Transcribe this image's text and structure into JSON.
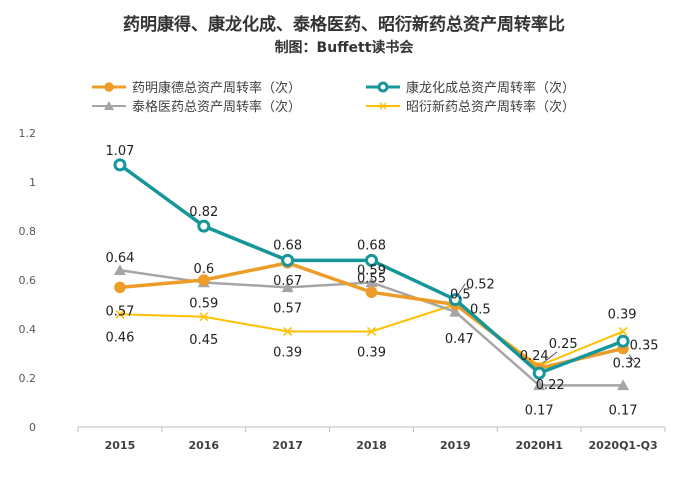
{
  "chart_data": {
    "type": "line",
    "title": "药明康得、康龙化成、泰格医药、昭衍新药总资产周转率比",
    "subtitle": "制图：Buffett读书会",
    "categories": [
      "2015",
      "2016",
      "2017",
      "2018",
      "2019",
      "2020H1",
      "2020Q1-Q3"
    ],
    "ylim": [
      0,
      1.2
    ],
    "yticks": [
      "0",
      "0.2",
      "0.4",
      "0.6",
      "0.8",
      "1",
      "1.2"
    ],
    "grid": false,
    "legend_position": "top",
    "series": [
      {
        "name": "药明康德总资产周转率（次）",
        "color": "#ED9C28",
        "marker": "circle-filled",
        "values": [
          0.57,
          0.6,
          0.67,
          0.55,
          0.5,
          0.24,
          0.32
        ],
        "labels": [
          "0.57",
          "0.6",
          "0.67",
          "0.55",
          "0.5",
          "0.24",
          "0.32"
        ]
      },
      {
        "name": "康龙化成总资产周转率（次）",
        "color": "#15969A",
        "marker": "circle-hollow",
        "values": [
          1.07,
          0.82,
          0.68,
          0.68,
          0.52,
          0.22,
          0.35
        ],
        "labels": [
          "1.07",
          "0.82",
          "0.68",
          "0.68",
          "0.52",
          "0.22",
          "0.35"
        ]
      },
      {
        "name": "泰格医药总资产周转率（次）",
        "color": "#A5A5A5",
        "marker": "triangle",
        "values": [
          0.64,
          0.59,
          0.57,
          0.59,
          0.47,
          0.17,
          0.17
        ],
        "labels": [
          "0.64",
          "0.59",
          "0.57",
          "0.59",
          "0.47",
          "0.17",
          "0.17"
        ]
      },
      {
        "name": "昭衍新药总资产周转率（次）",
        "color": "#FFC000",
        "marker": "x",
        "values": [
          0.46,
          0.45,
          0.39,
          0.39,
          0.5,
          0.25,
          0.39
        ],
        "labels": [
          "0.46",
          "0.45",
          "0.39",
          "0.39",
          "0.5",
          "0.25",
          "0.39"
        ]
      }
    ]
  }
}
